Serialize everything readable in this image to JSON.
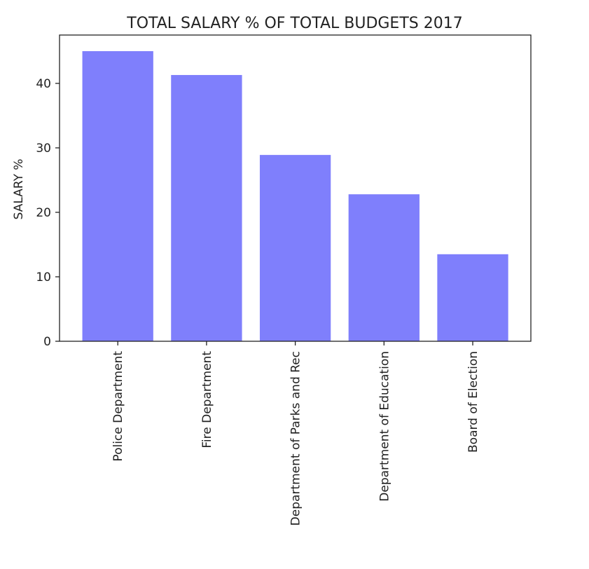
{
  "chart_data": {
    "type": "bar",
    "title": "TOTAL SALARY % OF TOTAL BUDGETS 2017",
    "xlabel": "",
    "ylabel": "SALARY %",
    "categories": [
      "Police Department",
      "Fire Department",
      "Department of Parks and Rec",
      "Department of Education",
      "Board of Election"
    ],
    "values": [
      45.0,
      41.3,
      28.9,
      22.8,
      13.5
    ],
    "ylim": [
      0,
      47.5
    ],
    "yticks": [
      0,
      10,
      20,
      30,
      40
    ],
    "bar_color": "#7f7ffc",
    "grid": false,
    "legend": "none"
  }
}
